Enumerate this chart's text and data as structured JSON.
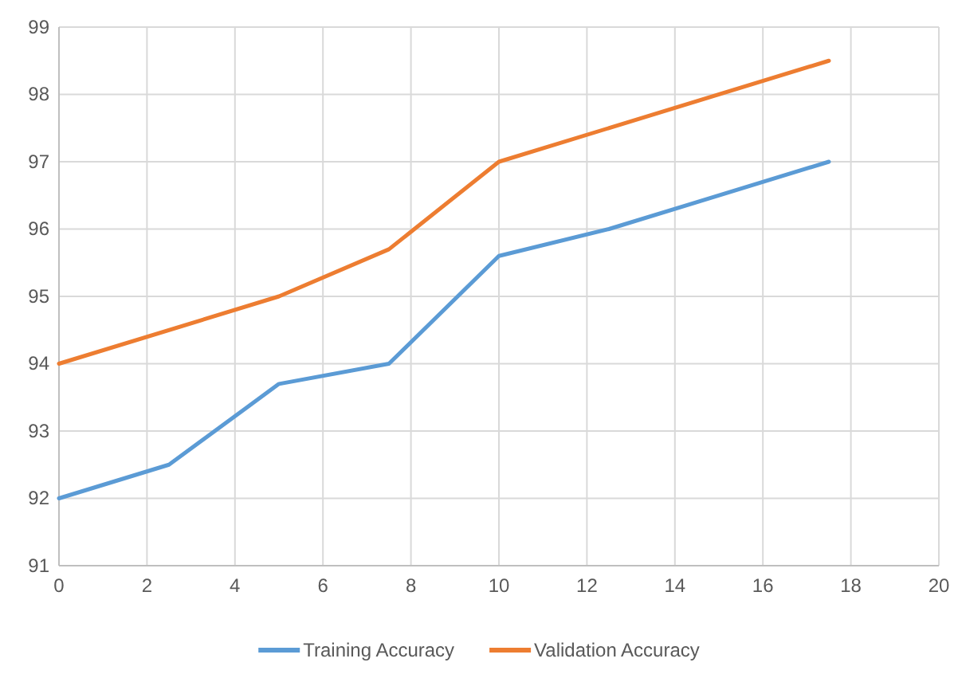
{
  "chart_data": {
    "type": "line",
    "xlim": [
      0,
      20
    ],
    "xticks": [
      0,
      2,
      4,
      6,
      8,
      10,
      12,
      14,
      16,
      18,
      20
    ],
    "ylim": [
      91,
      99
    ],
    "yticks": [
      91,
      92,
      93,
      94,
      95,
      96,
      97,
      98,
      99
    ],
    "grid": true,
    "legend": "bottom",
    "marker": "none",
    "line_style": "solid",
    "series": [
      {
        "name": "Training Accuracy",
        "color": "#5b9bd5",
        "x": [
          0,
          2.5,
          5,
          7.5,
          10,
          12.5,
          17.5
        ],
        "values": [
          92,
          92.5,
          93.7,
          94,
          95.6,
          96,
          97
        ]
      },
      {
        "name": "Validation Accuracy",
        "color": "#ed7d31",
        "x": [
          0,
          5,
          7.5,
          10,
          17.5
        ],
        "values": [
          94,
          95,
          95.7,
          97,
          98.5
        ]
      }
    ]
  }
}
